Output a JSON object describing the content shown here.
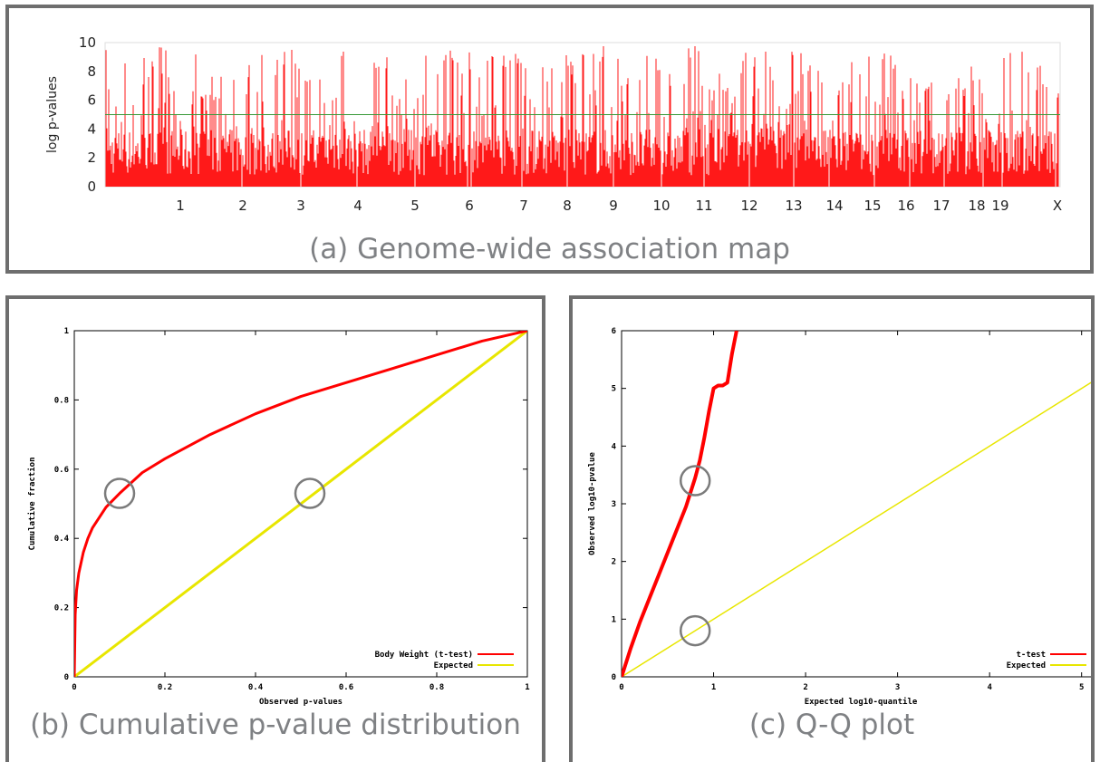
{
  "panels": {
    "a_caption": "(a) Genome-wide association map",
    "b_caption": "(b) Cumulative p-value distribution",
    "c_caption": "(c) Q-Q plot"
  },
  "colors": {
    "observed": "#ff0000",
    "expected": "#e8e600",
    "threshold": "#3a9a3a",
    "frame": "#6e6e6e",
    "caption": "#7f8184"
  },
  "chart_data": [
    {
      "type": "bar",
      "ylabel": "log p-values",
      "ylim": [
        0,
        10
      ],
      "yticks": [
        "0",
        "2",
        "4",
        "6",
        "8",
        "10"
      ],
      "threshold": 5,
      "chromosomes": [
        "1",
        "2",
        "3",
        "4",
        "5",
        "6",
        "7",
        "8",
        "9",
        "10",
        "11",
        "12",
        "13",
        "14",
        "15",
        "16",
        "17",
        "18",
        "19",
        "X"
      ],
      "peak_profile": [
        9.6,
        9.8,
        9.5,
        7.2,
        9.7,
        9.9,
        8.4,
        9.6,
        9.2,
        6.5,
        9.8,
        9.4,
        9.7,
        8.8,
        9.5,
        9.9,
        9.6,
        9.3,
        9.8,
        6.8,
        9.6,
        9.7,
        9.1,
        9.8,
        9.4,
        7.6,
        9.7,
        9.5,
        9.9,
        9.2
      ]
    },
    {
      "type": "line",
      "xlabel": "Observed p-values",
      "ylabel": "Cumulative fraction",
      "xlim": [
        0,
        1
      ],
      "ylim": [
        0,
        1
      ],
      "xticks": [
        "0",
        "0.2",
        "0.4",
        "0.6",
        "0.8",
        "1"
      ],
      "yticks": [
        "0",
        "0.2",
        "0.4",
        "0.6",
        "0.8",
        "1"
      ],
      "legend_position": "bottom-right",
      "series": [
        {
          "name": "Body Weight (t-test)",
          "x": [
            0,
            0.002,
            0.005,
            0.01,
            0.02,
            0.03,
            0.04,
            0.05,
            0.07,
            0.1,
            0.15,
            0.2,
            0.3,
            0.4,
            0.5,
            0.6,
            0.7,
            0.8,
            0.9,
            1.0
          ],
          "y": [
            0,
            0.18,
            0.25,
            0.3,
            0.36,
            0.4,
            0.43,
            0.45,
            0.49,
            0.53,
            0.59,
            0.63,
            0.7,
            0.76,
            0.81,
            0.85,
            0.89,
            0.93,
            0.97,
            1.0
          ]
        },
        {
          "name": "Expected",
          "x": [
            0,
            1
          ],
          "y": [
            0,
            1
          ]
        }
      ],
      "annotations": [
        {
          "shape": "circle",
          "x": 0.1,
          "y": 0.53
        },
        {
          "shape": "circle",
          "x": 0.52,
          "y": 0.53
        }
      ]
    },
    {
      "type": "scatter",
      "xlabel": "Expected log10-quantile",
      "ylabel": "Observed log10-pvalue",
      "xlim": [
        0,
        5.2
      ],
      "ylim": [
        0,
        6
      ],
      "xticks": [
        "0",
        "1",
        "2",
        "3",
        "4",
        "5"
      ],
      "yticks": [
        "0",
        "1",
        "2",
        "3",
        "4",
        "5",
        "6"
      ],
      "legend_position": "bottom-right",
      "series": [
        {
          "name": "t-test",
          "x": [
            0,
            0.05,
            0.1,
            0.2,
            0.3,
            0.4,
            0.5,
            0.6,
            0.7,
            0.8,
            0.85,
            0.9,
            0.95,
            1.0,
            1.05,
            1.1,
            1.15,
            1.2,
            1.25
          ],
          "y": [
            0,
            0.25,
            0.5,
            0.95,
            1.35,
            1.75,
            2.15,
            2.55,
            2.95,
            3.45,
            3.75,
            4.15,
            4.6,
            5.0,
            5.05,
            5.05,
            5.1,
            5.6,
            6.0
          ]
        },
        {
          "name": "Expected",
          "x": [
            0,
            5.2
          ],
          "y": [
            0,
            5.2
          ]
        }
      ],
      "annotations": [
        {
          "shape": "circle",
          "x": 0.8,
          "y": 3.4
        },
        {
          "shape": "circle",
          "x": 0.8,
          "y": 0.8
        }
      ]
    }
  ]
}
